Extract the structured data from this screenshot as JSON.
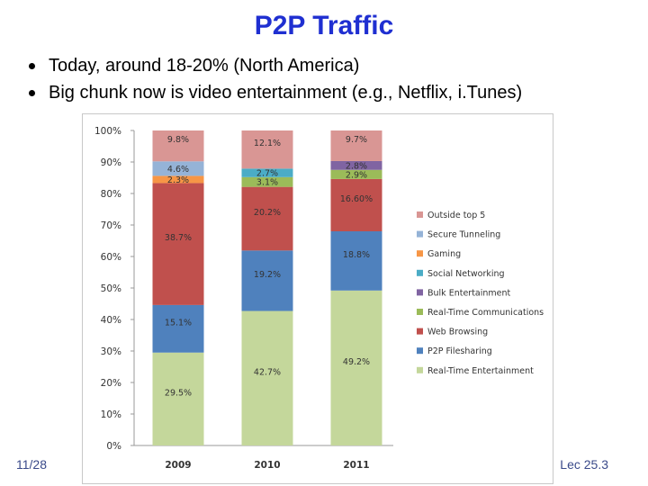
{
  "slide": {
    "title": "P2P Traffic",
    "bullets": [
      "Today, around 18-20% (North America)",
      "Big chunk now is video entertainment (e.g., Netflix, i.Tunes)"
    ],
    "footer_left": "11/28",
    "footer_right": "Lec 25.3"
  },
  "chart_data": {
    "type": "bar",
    "stacked": true,
    "categories": [
      "2009",
      "2010",
      "2011"
    ],
    "ylim": [
      0,
      100
    ],
    "yticks": [
      "0%",
      "10%",
      "20%",
      "30%",
      "40%",
      "50%",
      "60%",
      "70%",
      "80%",
      "90%",
      "100%"
    ],
    "legend_position": "right",
    "series": [
      {
        "name": "Real-Time Entertainment",
        "color": "#c4d79b",
        "values": [
          29.5,
          42.7,
          49.2
        ],
        "labels": [
          "29.5%",
          "42.7%",
          "49.2%"
        ]
      },
      {
        "name": "P2P Filesharing",
        "color": "#4f81bd",
        "values": [
          15.1,
          19.2,
          18.8
        ],
        "labels": [
          "15.1%",
          "19.2%",
          "18.8%"
        ]
      },
      {
        "name": "Web Browsing",
        "color": "#c0504d",
        "values": [
          38.7,
          20.2,
          16.6
        ],
        "labels": [
          "38.7%",
          "20.2%",
          "16.60%"
        ]
      },
      {
        "name": "Real-Time Communications",
        "color": "#9bbb59",
        "values": [
          0,
          3.1,
          2.9
        ],
        "labels": [
          "",
          "3.1%",
          "2.9%"
        ]
      },
      {
        "name": "Bulk Entertainment",
        "color": "#8064a2",
        "values": [
          0,
          0,
          2.8
        ],
        "labels": [
          "",
          "",
          "2.8%"
        ]
      },
      {
        "name": "Social Networking",
        "color": "#4bacc6",
        "values": [
          0,
          2.7,
          0
        ],
        "labels": [
          "",
          "2.7%",
          ""
        ]
      },
      {
        "name": "Gaming",
        "color": "#f79646",
        "values": [
          2.3,
          0,
          0
        ],
        "labels": [
          "2.3%",
          "",
          ""
        ]
      },
      {
        "name": "Secure Tunneling",
        "color": "#95b3d7",
        "values": [
          4.6,
          0,
          0
        ],
        "labels": [
          "4.6%",
          "",
          ""
        ]
      },
      {
        "name": "Outside top 5",
        "color": "#d99694",
        "values": [
          9.8,
          12.1,
          9.7
        ],
        "labels": [
          "9.8%",
          "12.1%",
          "9.7%"
        ]
      }
    ],
    "legend_order": [
      "Outside top 5",
      "Secure Tunneling",
      "Gaming",
      "Social Networking",
      "Bulk Entertainment",
      "Real-Time Communications",
      "Web Browsing",
      "P2P Filesharing",
      "Real-Time Entertainment"
    ]
  }
}
